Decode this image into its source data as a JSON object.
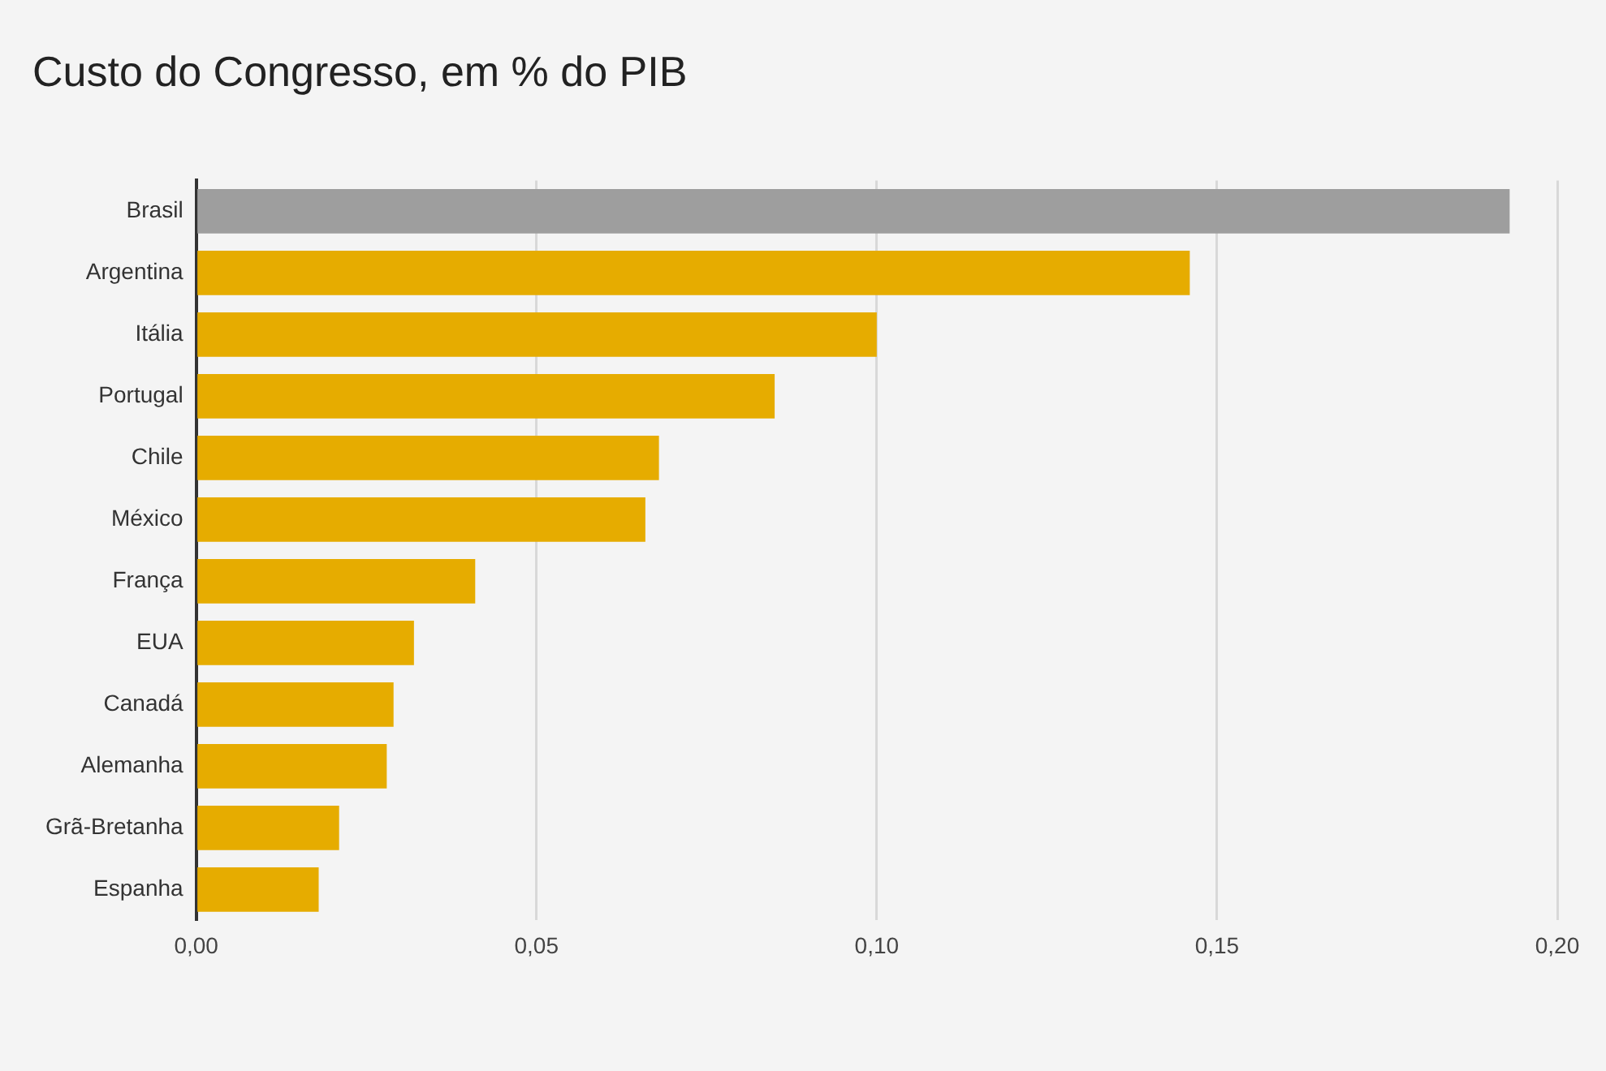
{
  "chart_data": {
    "type": "bar",
    "orientation": "horizontal",
    "title": "Custo do Congresso, em % do PIB",
    "categories": [
      "Brasil",
      "Argentina",
      "Itália",
      "Portugal",
      "Chile",
      "México",
      "França",
      "EUA",
      "Canadá",
      "Alemanha",
      "Grã-Bretanha",
      "Espanha"
    ],
    "values": [
      0.193,
      0.146,
      0.1,
      0.085,
      0.068,
      0.066,
      0.041,
      0.032,
      0.029,
      0.028,
      0.021,
      0.018
    ],
    "colors": [
      "#9e9e9e",
      "#e6ac00",
      "#e6ac00",
      "#e6ac00",
      "#e6ac00",
      "#e6ac00",
      "#e6ac00",
      "#e6ac00",
      "#e6ac00",
      "#e6ac00",
      "#e6ac00",
      "#e6ac00"
    ],
    "xlim": [
      0,
      0.2
    ],
    "xticks": [
      {
        "value": 0,
        "label": "0,00"
      },
      {
        "value": 0.05,
        "label": "0,05"
      },
      {
        "value": 0.1,
        "label": "0,10"
      },
      {
        "value": 0.15,
        "label": "0,15"
      },
      {
        "value": 0.2,
        "label": "0,20"
      }
    ],
    "grid": "x",
    "legend": false
  }
}
